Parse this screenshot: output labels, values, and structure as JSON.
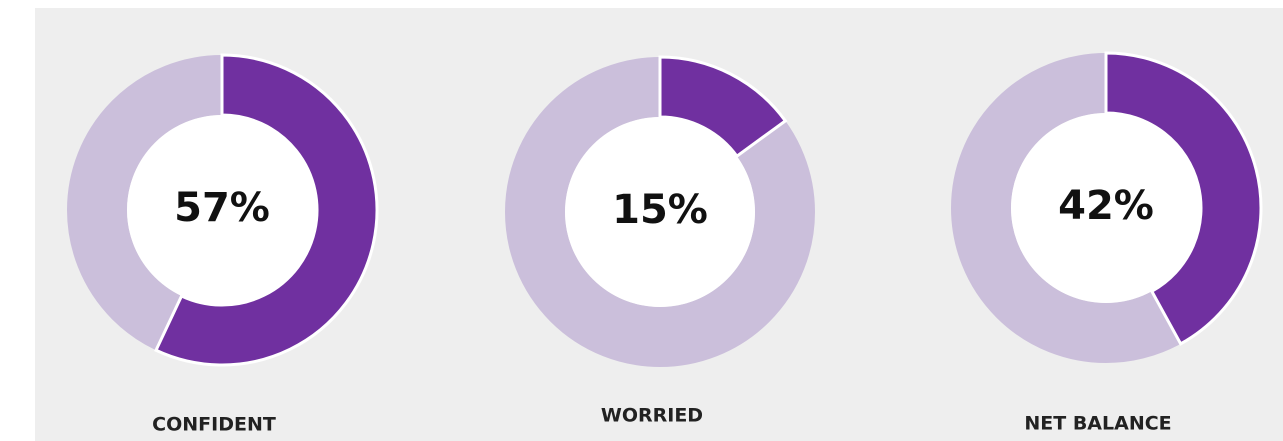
{
  "chart_data": [
    {
      "type": "donut",
      "title": "CONFIDENT",
      "values": [
        57
      ],
      "value_labels": [
        "57%"
      ],
      "color": "#7030a0",
      "track_color": "#cbbfdb"
    },
    {
      "type": "donut",
      "title": "WORRIED",
      "values": [
        15
      ],
      "value_labels": [
        "15%"
      ],
      "color": "#7030a0",
      "track_color": "#cbbfdb"
    },
    {
      "type": "donut",
      "title": "NET BALANCE",
      "values": [
        42
      ],
      "value_labels": [
        "42%"
      ],
      "color": "#7030a0",
      "track_color": "#cbbfdb"
    }
  ]
}
